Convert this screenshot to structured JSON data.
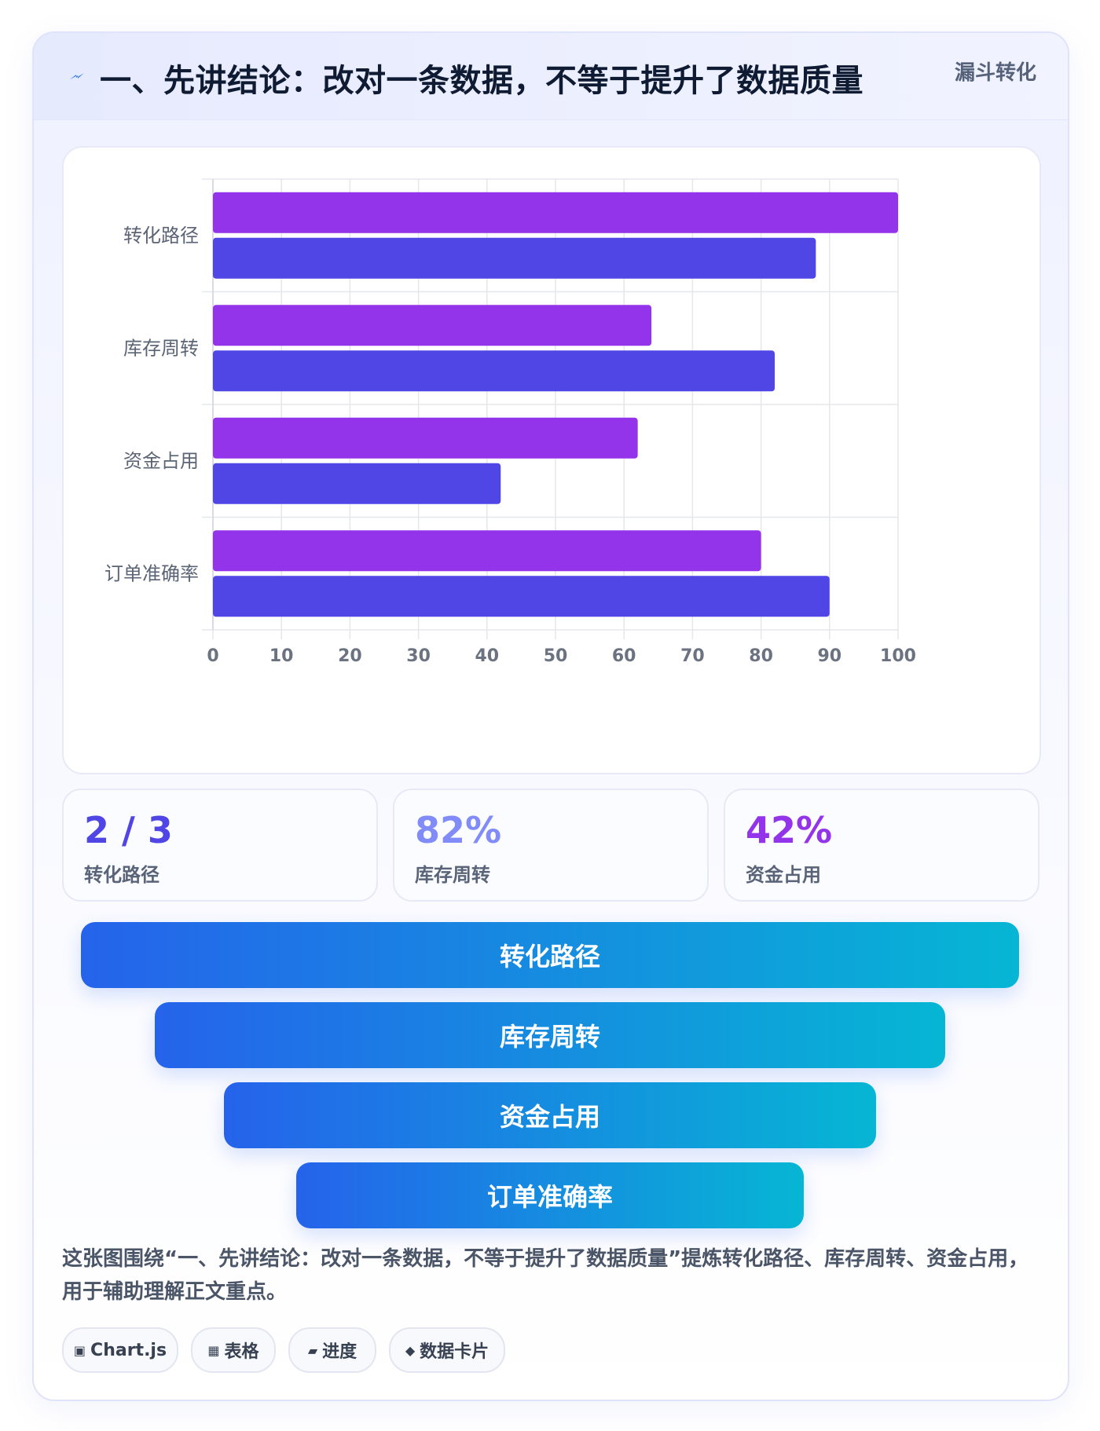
{
  "header": {
    "title": "一、先讲结论：改对一条数据，不等于提升了数据质量",
    "tag": "漏斗转化",
    "icon": "lightning-icon"
  },
  "chart_data": {
    "type": "bar",
    "orientation": "horizontal",
    "categories": [
      "转化路径",
      "库存周转",
      "资金占用",
      "订单准确率"
    ],
    "series": [
      {
        "color": "#9333ea",
        "values": [
          100,
          64,
          62,
          80
        ]
      },
      {
        "color": "#4f46e5",
        "values": [
          88,
          82,
          42,
          90
        ]
      }
    ],
    "xlim": [
      0,
      100
    ],
    "xticks": [
      0,
      10,
      20,
      30,
      40,
      50,
      60,
      70,
      80,
      90,
      100
    ],
    "grid": true,
    "legend": "none"
  },
  "stats": [
    {
      "value": "2 / 3",
      "label": "转化路径",
      "color": "#4f46e5"
    },
    {
      "value": "82%",
      "label": "库存周转",
      "color": "#818cf8"
    },
    {
      "value": "42%",
      "label": "资金占用",
      "color": "#9333ea"
    }
  ],
  "funnel": [
    {
      "label": "转化路径"
    },
    {
      "label": "库存周转"
    },
    {
      "label": "资金占用"
    },
    {
      "label": "订单准确率"
    }
  ],
  "description": "这张图围绕“一、先讲结论：改对一条数据，不等于提升了数据质量”提炼转化路径、库存周转、资金占用，用于辅助理解正文重点。",
  "chips": [
    {
      "icon": "▣",
      "label": "Chart.js"
    },
    {
      "icon": "▦",
      "label": "表格"
    },
    {
      "icon": "▰",
      "label": "进度"
    },
    {
      "icon": "◆",
      "label": "数据卡片"
    }
  ]
}
